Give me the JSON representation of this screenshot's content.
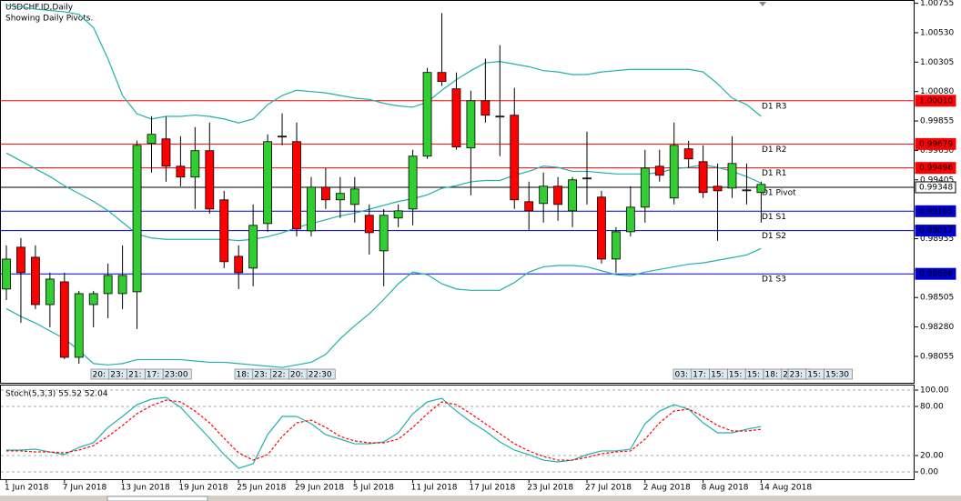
{
  "chart_data": [
    {
      "type": "candlestick",
      "title": "USDCHF.ID,Daily",
      "subtitle": "Showing Daily Pivots.",
      "categories": [
        "1 Jun 2018",
        null,
        null,
        null,
        "7 Jun 2018",
        null,
        null,
        null,
        "13 Jun 2018",
        null,
        null,
        null,
        "19 Jun 2018",
        null,
        null,
        null,
        "25 Jun 2018",
        null,
        null,
        null,
        "29 Jun 2018",
        null,
        null,
        null,
        "5 Jul 2018",
        null,
        null,
        null,
        "11 Jul 2018",
        null,
        null,
        null,
        "17 Jul 2018",
        null,
        null,
        null,
        "23 Jul 2018",
        null,
        null,
        null,
        "27 Jul 2018",
        null,
        null,
        null,
        "2 Aug 2018",
        null,
        null,
        null,
        "8 Aug 2018",
        null,
        null,
        null,
        "14 Aug 2018"
      ],
      "open": [
        0.9857,
        0.9889,
        0.98813,
        0.98451,
        0.98625,
        0.98048,
        0.98451,
        0.98535,
        0.98535,
        0.98549,
        0.99683,
        0.99718,
        0.99509,
        0.99426,
        0.99628,
        0.99252,
        0.9882,
        0.9873,
        0.99071,
        0.99732,
        0.99697,
        0.99015,
        0.99349,
        0.99252,
        0.99217,
        0.99134,
        0.98862,
        0.99113,
        0.99182,
        0.99586,
        1.00226,
        1.00101,
        0.99649,
        1.0001,
        0.99885,
        0.99899,
        0.99238,
        0.99224,
        0.99356,
        0.99168,
        0.99419,
        0.99273,
        0.98799,
        0.99008,
        0.99196,
        0.99509,
        0.99266,
        0.99642,
        0.99544,
        0.99356,
        0.99342,
        0.99328,
        0.99308
      ],
      "high": [
        0.98904,
        0.9896,
        0.98904,
        0.98695,
        0.98695,
        0.98556,
        0.98556,
        0.98765,
        0.98904,
        0.99704,
        0.99892,
        0.99892,
        0.99739,
        0.99809,
        0.99843,
        0.99321,
        0.98904,
        0.99217,
        0.99753,
        0.99913,
        0.99843,
        0.99426,
        0.99495,
        0.99426,
        0.99426,
        0.99217,
        0.99182,
        0.99217,
        0.99635,
        1.00261,
        1.00679,
        1.00226,
        1.00087,
        1.00331,
        1.00435,
        1.00108,
        0.99391,
        0.99461,
        0.99426,
        0.99426,
        0.99774,
        0.99321,
        0.99043,
        0.99356,
        0.99635,
        0.99635,
        0.99843,
        0.99704,
        0.99669,
        0.9953,
        0.99739,
        0.9953,
        0.99391
      ],
      "low": [
        0.98486,
        0.98312,
        0.98417,
        0.98277,
        0.98034,
        0.97999,
        0.98277,
        0.98347,
        0.98417,
        0.98264,
        0.99461,
        0.99391,
        0.99356,
        0.99182,
        0.99147,
        0.9873,
        0.9857,
        0.98591,
        0.99008,
        0.99669,
        0.98973,
        0.98973,
        0.99182,
        0.99113,
        0.99078,
        0.98834,
        0.98591,
        0.99043,
        0.99057,
        0.99565,
        1.00122,
        0.99635,
        0.99287,
        0.99843,
        0.99586,
        0.99182,
        0.99022,
        0.99078,
        0.99092,
        0.99043,
        0.99217,
        0.98765,
        0.98695,
        0.98973,
        0.99078,
        0.99391,
        0.99217,
        0.99495,
        0.99266,
        0.98939,
        0.99266,
        0.99217,
        0.99078
      ],
      "close": [
        0.98799,
        0.98695,
        0.98451,
        0.98646,
        0.98048,
        0.98535,
        0.98535,
        0.98674,
        0.98674,
        0.99669,
        0.99753,
        0.99509,
        0.99426,
        0.99628,
        0.99182,
        0.98779,
        0.98695,
        0.99057,
        0.99697,
        0.99739,
        0.99029,
        0.99349,
        0.99252,
        0.99301,
        0.99335,
        0.99001,
        0.99134,
        0.99168,
        0.99586,
        1.00226,
        1.00157,
        0.99656,
        1.0001,
        0.99899,
        0.99892,
        0.99252,
        0.99168,
        0.99356,
        0.99217,
        0.99405,
        0.99419,
        0.98799,
        0.99008,
        0.99196,
        0.99495,
        0.9944,
        0.99669,
        0.99565,
        0.99308,
        0.99321,
        0.9953,
        0.99328,
        0.9937
      ],
      "up_color": "#32cd32",
      "down_color": "#ff0000",
      "bands": {
        "color": "#20b2aa",
        "upper": [
          1.0074,
          1.0073,
          1.0071,
          1.007,
          1.0069,
          1.0067,
          1.0057,
          1.0033,
          1.0005,
          0.9991,
          0.9987,
          0.9989,
          0.9989,
          0.999,
          0.9989,
          0.9987,
          0.9984,
          0.9987,
          0.9998,
          1.0005,
          1.0009,
          1.0008,
          1.0007,
          1.0005,
          1.0003,
          1.0002,
          0.9999,
          0.9997,
          0.9996,
          1.0,
          1.0009,
          1.0017,
          1.0024,
          1.003,
          1.0031,
          1.0029,
          1.0027,
          1.0024,
          1.0023,
          1.0021,
          1.0021,
          1.0023,
          1.0024,
          1.0025,
          1.0025,
          1.0025,
          1.0025,
          1.0025,
          1.0023,
          1.0014,
          1.0003,
          0.9998,
          0.9989
        ],
        "middle": [
          0.9961,
          0.9955,
          0.9949,
          0.9943,
          0.9936,
          0.993,
          0.9924,
          0.9917,
          0.9908,
          0.9899,
          0.9896,
          0.9895,
          0.9895,
          0.9895,
          0.9895,
          0.9895,
          0.9894,
          0.9895,
          0.9897,
          0.99,
          0.9904,
          0.9907,
          0.991,
          0.9913,
          0.9915,
          0.9918,
          0.9921,
          0.9924,
          0.9926,
          0.9929,
          0.9934,
          0.9936,
          0.9939,
          0.994,
          0.994,
          0.9944,
          0.9947,
          0.9951,
          0.995,
          0.9947,
          0.9947,
          0.9946,
          0.9945,
          0.9945,
          0.9945,
          0.9946,
          0.9949,
          0.995,
          0.9952,
          0.995,
          0.9947,
          0.9943,
          0.9938
        ],
        "lower": [
          0.9842,
          0.9836,
          0.9831,
          0.9825,
          0.9819,
          0.981,
          0.98,
          0.9799,
          0.98,
          0.9803,
          0.9803,
          0.9803,
          0.9803,
          0.9802,
          0.9801,
          0.9801,
          0.98,
          0.9799,
          0.9798,
          0.9797,
          0.9799,
          0.9801,
          0.9807,
          0.9819,
          0.9829,
          0.9838,
          0.9849,
          0.9861,
          0.987,
          0.9868,
          0.9861,
          0.9857,
          0.9856,
          0.9856,
          0.9856,
          0.9862,
          0.987,
          0.9874,
          0.9875,
          0.9875,
          0.9874,
          0.9871,
          0.9868,
          0.9867,
          0.987,
          0.9872,
          0.9874,
          0.9876,
          0.9877,
          0.9879,
          0.9881,
          0.9883,
          0.9888
        ]
      },
      "pivots": [
        {
          "label": "D1 R3",
          "value": 1.0001,
          "value_label": "1.00010",
          "color": "#ff0000"
        },
        {
          "label": "D1 R2",
          "value": 0.99679,
          "color": "#ff0000"
        },
        {
          "label": "D1 R1",
          "value": 0.99496,
          "color": "#ff0000"
        },
        {
          "label": "D1 Pivot",
          "value": 0.99348,
          "color": "#000000"
        },
        {
          "label": "D1 S1",
          "value": 0.99165,
          "color": "#0000cd"
        },
        {
          "label": "D1 S2",
          "value": 0.99017,
          "color": "#0000cd"
        },
        {
          "label": "D1 S3",
          "value": 0.98686,
          "color": "#0000cd"
        }
      ],
      "ylim": [
        0.9786,
        1.0078
      ],
      "yticks": [
        1.00755,
        {
          "value": 1.0053,
          "label": "1.00530"
        },
        1.00305,
        {
          "value": 1.0008,
          "label": "1.00080"
        },
        0.99855,
        {
          "value": 0.9963,
          "label": "0.99630"
        },
        0.99405,
        0.98955,
        0.98505,
        {
          "value": 0.9828,
          "label": "0.98280"
        },
        0.98055
      ],
      "period_labels": [
        [
          "20:",
          "23:",
          "21:",
          "17:",
          "23:00"
        ],
        [
          "18:",
          "23:",
          "22:",
          "20:",
          "22:30"
        ],
        [
          "03:",
          "17:",
          "15:",
          "15:",
          "15:",
          "18:",
          "23:30"
        ],
        [
          "23:",
          "15:",
          "15:30"
        ]
      ]
    },
    {
      "type": "line",
      "title": "Stoch(5,3,3) 55.52 52.04",
      "series": [
        {
          "color": "#20b2aa",
          "values": [
            26.7,
            26.7,
            27.8,
            24.4,
            21.1,
            30.0,
            35.6,
            54.4,
            67.8,
            82.2,
            88.9,
            91.1,
            78.9,
            60.0,
            41.1,
            21.1,
            4.4,
            10.0,
            45.6,
            67.8,
            67.8,
            58.9,
            45.6,
            40.0,
            34.4,
            34.4,
            36.7,
            47.8,
            71.1,
            85.6,
            90.0,
            74.4,
            61.1,
            50.0,
            36.7,
            26.7,
            21.1,
            14.4,
            12.2,
            14.4,
            21.1,
            25.6,
            25.6,
            27.8,
            58.9,
            74.4,
            82.2,
            76.7,
            60.0,
            47.8,
            47.8,
            52.2,
            55.52
          ]
        },
        {
          "color": "#ff0000",
          "dash": true,
          "values": [
            25.6,
            25.6,
            24.4,
            24.4,
            23.3,
            26.7,
            32.2,
            43.3,
            56.7,
            71.1,
            81.1,
            87.8,
            85.6,
            74.4,
            60.0,
            41.1,
            23.3,
            14.4,
            21.1,
            43.3,
            60.0,
            63.3,
            54.4,
            43.3,
            37.8,
            35.6,
            35.6,
            40.0,
            54.4,
            71.1,
            85.6,
            82.2,
            71.1,
            58.9,
            46.7,
            34.4,
            25.6,
            18.9,
            14.4,
            14.4,
            17.8,
            22.2,
            24.4,
            25.6,
            40.0,
            60.0,
            74.4,
            76.7,
            67.8,
            56.7,
            50.0,
            50.0,
            52.04
          ]
        }
      ],
      "ylim": [
        -8.9,
        106.7
      ],
      "yticks": [
        {
          "value": 100,
          "label": "100.00"
        },
        {
          "value": 80,
          "label": "80.00"
        },
        {
          "value": 20,
          "label": "20.00"
        },
        {
          "value": 0,
          "label": "0.00"
        }
      ],
      "grid": true
    }
  ]
}
